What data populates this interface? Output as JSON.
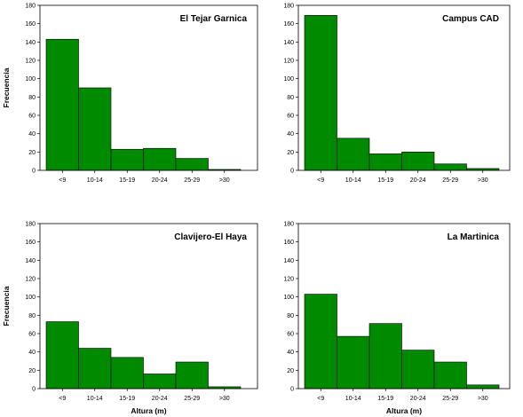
{
  "chart_data": [
    {
      "type": "bar",
      "title": "El Tejar Garnica",
      "xlabel": "",
      "ylabel": "Frecuencia",
      "categories": [
        "<9",
        "10-14",
        "15-19",
        "20-24",
        "25-29",
        ">30"
      ],
      "values": [
        143,
        90,
        23,
        24,
        13,
        1
      ],
      "ylim": [
        0,
        180
      ],
      "yticks": [
        "0",
        "20",
        "40",
        "60",
        "80",
        "100",
        "120",
        "140",
        "160",
        "180"
      ],
      "legend": "none",
      "grid": false
    },
    {
      "type": "bar",
      "title": "Campus CAD",
      "xlabel": "",
      "ylabel": "",
      "categories": [
        "<9",
        "10-14",
        "15-19",
        "20-24",
        "25-29",
        ">30"
      ],
      "values": [
        169,
        35,
        18,
        20,
        7,
        2
      ],
      "ylim": [
        0,
        180
      ],
      "yticks": [
        "0",
        "20",
        "40",
        "60",
        "80",
        "100",
        "120",
        "140",
        "160",
        "180"
      ],
      "legend": "none",
      "grid": false
    },
    {
      "type": "bar",
      "title": "Clavijero-El Haya",
      "xlabel": "Altura (m)",
      "ylabel": "Frecuencia",
      "categories": [
        "<9",
        "10-14",
        "15-19",
        "20-24",
        "25-29",
        ">30"
      ],
      "values": [
        73,
        44,
        34,
        16,
        29,
        2
      ],
      "ylim": [
        0,
        180
      ],
      "yticks": [
        "0",
        "20",
        "40",
        "60",
        "80",
        "100",
        "120",
        "140",
        "160",
        "180"
      ],
      "legend": "none",
      "grid": false
    },
    {
      "type": "bar",
      "title": "La Martinica",
      "xlabel": "Altura (m)",
      "ylabel": "",
      "categories": [
        "<9",
        "10-14",
        "15-19",
        "20-24",
        "25-29",
        ">30"
      ],
      "values": [
        103,
        57,
        71,
        42,
        29,
        4
      ],
      "ylim": [
        0,
        180
      ],
      "yticks": [
        "0",
        "20",
        "40",
        "60",
        "80",
        "100",
        "120",
        "140",
        "160",
        "180"
      ],
      "legend": "none",
      "grid": false
    }
  ],
  "colors": {
    "bar_fill": "#008a00",
    "bar_stroke": "#000000",
    "frame": "#000000"
  }
}
